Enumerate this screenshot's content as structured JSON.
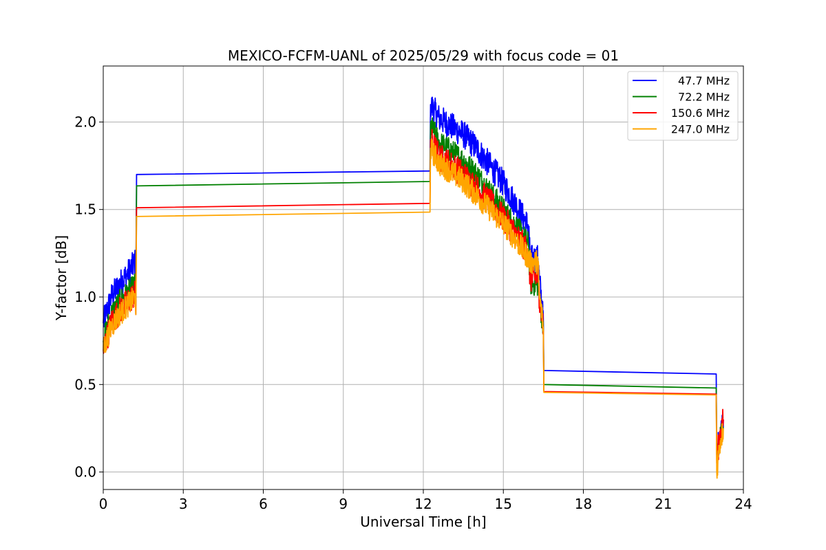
{
  "chart_data": {
    "type": "line",
    "title": "MEXICO-FCFM-UANL of 2025/05/29 with focus code = 01",
    "xlabel": "Universal Time [h]",
    "ylabel": "Y-factor [dB]",
    "xlim": [
      0,
      24
    ],
    "ylim": [
      -0.1,
      2.32
    ],
    "xticks": [
      0,
      3,
      6,
      9,
      12,
      15,
      18,
      21,
      24
    ],
    "yticks": [
      0.0,
      0.5,
      1.0,
      1.5,
      2.0
    ],
    "xtick_labels": [
      "0",
      "3",
      "6",
      "9",
      "12",
      "15",
      "18",
      "21",
      "24"
    ],
    "ytick_labels": [
      "0.0",
      "0.5",
      "1.0",
      "1.5",
      "2.0"
    ],
    "grid": true,
    "legend_position": "top-right",
    "series": [
      {
        "name": "47.7 MHz",
        "color": "#0000ff",
        "x": [
          0,
          0.3,
          0.6,
          0.9,
          1.2,
          1.22,
          1.25,
          12.25,
          12.27,
          12.6,
          13.0,
          13.5,
          14.0,
          14.5,
          15.0,
          15.5,
          15.95,
          16.0,
          16.3,
          16.35,
          16.45,
          16.5,
          16.52,
          22.98,
          23.0,
          23.1,
          23.25
        ],
        "y": [
          0.85,
          1.0,
          1.07,
          1.13,
          1.2,
          1.0,
          1.7,
          1.72,
          2.1,
          2.02,
          1.98,
          1.93,
          1.85,
          1.75,
          1.65,
          1.52,
          1.4,
          1.22,
          1.22,
          1.1,
          0.95,
          0.85,
          0.58,
          0.56,
          0.1,
          0.2,
          0.3
        ]
      },
      {
        "name": "72.2 MHz",
        "color": "#008000",
        "x": [
          0,
          0.3,
          0.6,
          0.9,
          1.2,
          1.22,
          1.25,
          12.25,
          12.27,
          12.6,
          13.0,
          13.5,
          14.0,
          14.5,
          15.0,
          15.5,
          15.95,
          16.0,
          16.3,
          16.35,
          16.45,
          16.5,
          16.52,
          22.98,
          23.0,
          23.1,
          23.25
        ],
        "y": [
          0.75,
          0.9,
          0.97,
          1.02,
          1.07,
          0.95,
          1.635,
          1.66,
          1.98,
          1.88,
          1.84,
          1.78,
          1.7,
          1.6,
          1.5,
          1.4,
          1.3,
          1.08,
          1.07,
          1.0,
          0.88,
          0.8,
          0.5,
          0.48,
          0.1,
          0.18,
          0.25
        ]
      },
      {
        "name": "150.6 MHz",
        "color": "#ff0000",
        "x": [
          0,
          0.3,
          0.6,
          0.9,
          1.2,
          1.22,
          1.25,
          12.25,
          12.27,
          12.6,
          13.0,
          13.5,
          14.0,
          14.5,
          15.0,
          15.5,
          15.95,
          16.0,
          16.3,
          16.35,
          16.45,
          16.5,
          16.52,
          22.98,
          23.0,
          23.1,
          23.25
        ],
        "y": [
          0.7,
          0.85,
          0.92,
          0.97,
          1.02,
          0.9,
          1.51,
          1.535,
          1.9,
          1.8,
          1.76,
          1.7,
          1.62,
          1.54,
          1.45,
          1.35,
          1.25,
          1.1,
          1.12,
          1.0,
          0.9,
          0.8,
          0.46,
          0.445,
          0.05,
          0.2,
          0.3
        ]
      },
      {
        "name": "247.0 MHz",
        "color": "#ffa500",
        "x": [
          0,
          0.3,
          0.6,
          0.9,
          1.2,
          1.22,
          1.25,
          12.25,
          12.27,
          12.6,
          13.0,
          13.5,
          14.0,
          14.5,
          15.0,
          15.5,
          15.95,
          16.0,
          16.3,
          16.35,
          16.45,
          16.5,
          16.52,
          22.98,
          23.0,
          23.1,
          23.25
        ],
        "y": [
          0.7,
          0.83,
          0.9,
          0.95,
          1.0,
          0.9,
          1.46,
          1.485,
          1.85,
          1.76,
          1.72,
          1.66,
          1.58,
          1.5,
          1.42,
          1.32,
          1.22,
          1.2,
          1.2,
          1.0,
          0.9,
          0.8,
          0.455,
          0.44,
          0.0,
          0.15,
          0.25
        ]
      }
    ]
  }
}
